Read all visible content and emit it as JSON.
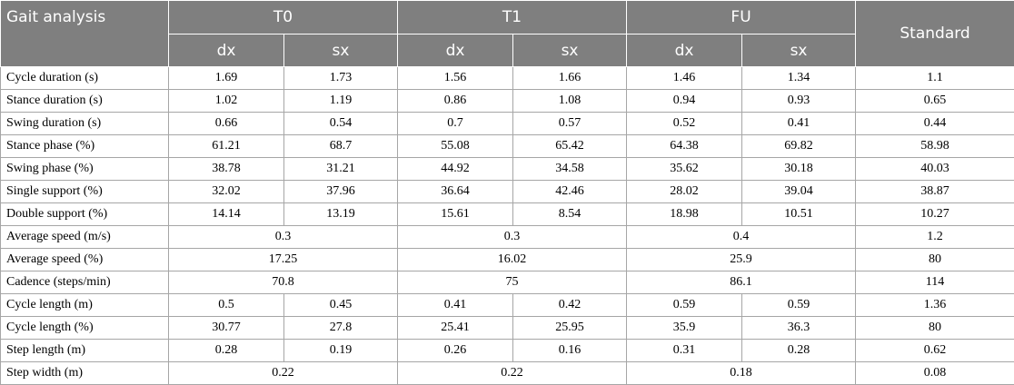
{
  "header": {
    "title": "Gait analysis",
    "periods": [
      "T0",
      "T1",
      "FU"
    ],
    "standard": "Standard",
    "sides": [
      "dx",
      "sx"
    ]
  },
  "rows": [
    {
      "label": "Cycle duration (s)",
      "values": [
        "1.69",
        "1.73",
        "1.56",
        "1.66",
        "1.46",
        "1.34"
      ],
      "standard": "1.1"
    },
    {
      "label": "Stance duration (s)",
      "values": [
        "1.02",
        "1.19",
        "0.86",
        "1.08",
        "0.94",
        "0.93"
      ],
      "standard": "0.65"
    },
    {
      "label": "Swing duration (s)",
      "values": [
        "0.66",
        "0.54",
        "0.7",
        "0.57",
        "0.52",
        "0.41"
      ],
      "standard": "0.44"
    },
    {
      "label": "Stance phase (%)",
      "values": [
        "61.21",
        "68.7",
        "55.08",
        "65.42",
        "64.38",
        "69.82"
      ],
      "standard": "58.98"
    },
    {
      "label": "Swing phase (%)",
      "values": [
        "38.78",
        "31.21",
        "44.92",
        "34.58",
        "35.62",
        "30.18"
      ],
      "standard": "40.03"
    },
    {
      "label": "Single support (%)",
      "values": [
        "32.02",
        "37.96",
        "36.64",
        "42.46",
        "28.02",
        "39.04"
      ],
      "standard": "38.87"
    },
    {
      "label": "Double support (%)",
      "values": [
        "14.14",
        "13.19",
        "15.61",
        "8.54",
        "18.98",
        "10.51"
      ],
      "standard": "10.27"
    },
    {
      "label": "Average speed (m/s)",
      "values": [
        "0.3",
        "0.3",
        "0.4"
      ],
      "standard": "1.2"
    },
    {
      "label": "Average speed (%)",
      "values": [
        "17.25",
        "16.02",
        "25.9"
      ],
      "standard": "80"
    },
    {
      "label": "Cadence (steps/min)",
      "values": [
        "70.8",
        "75",
        "86.1"
      ],
      "standard": "114"
    },
    {
      "label": "Cycle length (m)",
      "values": [
        "0.5",
        "0.45",
        "0.41",
        "0.42",
        "0.59",
        "0.59"
      ],
      "standard": "1.36"
    },
    {
      "label": "Cycle length (%)",
      "values": [
        "30.77",
        "27.8",
        "25.41",
        "25.95",
        "35.9",
        "36.3"
      ],
      "standard": "80"
    },
    {
      "label": "Step length (m)",
      "values": [
        "0.28",
        "0.19",
        "0.26",
        "0.16",
        "0.31",
        "0.28"
      ],
      "standard": "0.62"
    },
    {
      "label": "Step width (m)",
      "values": [
        "0.22",
        "0.22",
        "0.18"
      ],
      "standard": "0.08"
    }
  ]
}
